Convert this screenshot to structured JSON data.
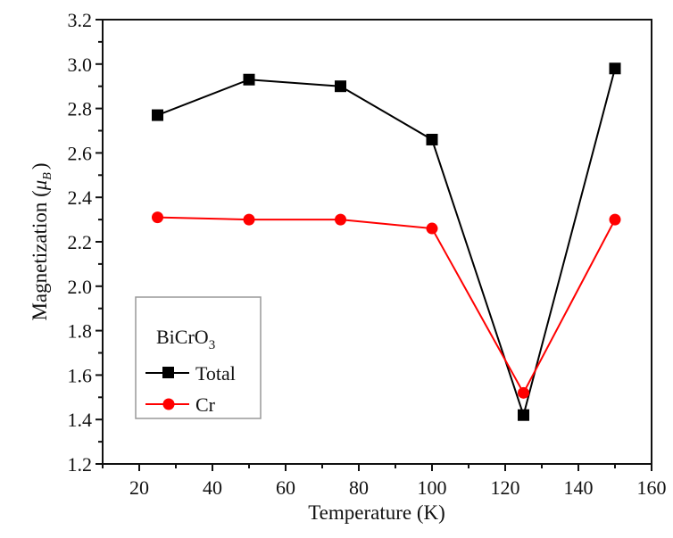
{
  "chart_data": {
    "type": "line",
    "title": "",
    "xlabel": "Temperature (K)",
    "ylabel_main": "Magnetization (",
    "ylabel_mu": "μ",
    "ylabel_sub": "B",
    "ylabel_close": ")",
    "xlim": [
      10,
      160
    ],
    "ylim": [
      1.2,
      3.2
    ],
    "xticks": [
      "20",
      "40",
      "60",
      "80",
      "100",
      "120",
      "140",
      "160"
    ],
    "xtick_values": [
      20,
      40,
      60,
      80,
      100,
      120,
      140,
      160
    ],
    "yticks": [
      "1.2",
      "1.4",
      "1.6",
      "1.8",
      "2.0",
      "2.2",
      "2.4",
      "2.6",
      "2.8",
      "3.0",
      "3.2"
    ],
    "ytick_values": [
      1.2,
      1.4,
      1.6,
      1.8,
      2.0,
      2.2,
      2.4,
      2.6,
      2.8,
      3.0,
      3.2
    ],
    "x": [
      25,
      50,
      75,
      100,
      125,
      150
    ],
    "series": [
      {
        "name": "Total",
        "color": "#000000",
        "marker": "square",
        "values": [
          2.77,
          2.93,
          2.9,
          2.66,
          1.42,
          2.98
        ]
      },
      {
        "name": "Cr",
        "color": "#ff0000",
        "marker": "circle",
        "values": [
          2.31,
          2.3,
          2.3,
          2.26,
          1.52,
          2.3
        ]
      }
    ],
    "legend": {
      "title_main": "BiCrO",
      "title_sub": "3",
      "placement": "lower-left"
    },
    "grid": false
  }
}
